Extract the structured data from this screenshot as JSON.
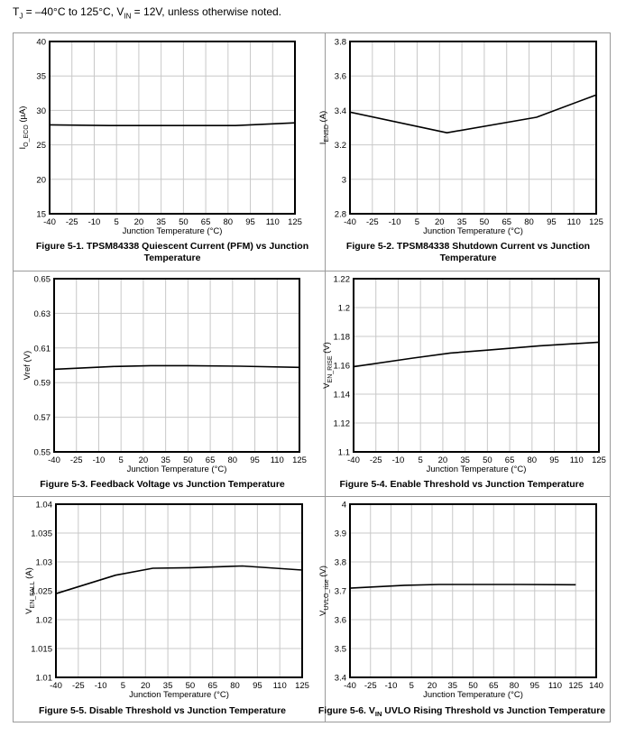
{
  "header": {
    "tj_symbol": "T",
    "tj_sub": "J",
    "range_text": " = –40°C to 125°C, V",
    "vin_sub": "IN",
    "rest_text": " = 12V, unless otherwise noted."
  },
  "chart_data": [
    {
      "type": "line",
      "title": "Figure 5-1. TPSM84338 Quiescent Current (PFM) vs Junction Temperature",
      "title_lines": [
        "Figure 5-1. TPSM84338 Quiescent Current (PFM) vs Junction",
        "Temperature"
      ],
      "xlabel": "Junction Temperature (°C)",
      "ylabel": "I_O_ECO (µA)",
      "ylabel_main": "I",
      "ylabel_sub": "O_ECO",
      "ylabel_tail": " (µA)",
      "xlim": [
        -40,
        125
      ],
      "xticks": [
        -40,
        -25,
        -10,
        5,
        20,
        35,
        50,
        65,
        80,
        95,
        110,
        125
      ],
      "ylim": [
        15,
        40
      ],
      "yticks": [
        15,
        20,
        25,
        30,
        35,
        40
      ],
      "ytick_labels": [
        "15",
        "20",
        "25",
        "30",
        "35",
        "40"
      ],
      "grid": true,
      "series": [
        {
          "x": [
            -40,
            0,
            25,
            85,
            125
          ],
          "y": [
            27.9,
            27.8,
            27.8,
            27.8,
            28.2
          ]
        }
      ]
    },
    {
      "type": "line",
      "title": "Figure 5-2. TPSM84338 Shutdown Current vs Junction Temperature",
      "title_lines": [
        "Figure 5-2. TPSM84338 Shutdown Current vs Junction",
        "Temperature"
      ],
      "xlabel": "Junction Temperature (°C)",
      "ylabel": "I_ENSD (A)",
      "ylabel_main": "I",
      "ylabel_sub": "ENSD",
      "ylabel_tail": " (A)",
      "xlim": [
        -40,
        125
      ],
      "xticks": [
        -40,
        -25,
        -10,
        5,
        20,
        35,
        50,
        65,
        80,
        95,
        110,
        125
      ],
      "ylim": [
        2.8,
        3.8
      ],
      "yticks": [
        2.8,
        3,
        3.2,
        3.4,
        3.6,
        3.8
      ],
      "ytick_labels": [
        "2.8",
        "3",
        "3.2",
        "3.4",
        "3.6",
        "3.8"
      ],
      "grid": true,
      "series": [
        {
          "x": [
            -40,
            25,
            85,
            125
          ],
          "y": [
            3.39,
            3.27,
            3.36,
            3.49
          ]
        }
      ]
    },
    {
      "type": "line",
      "title": "Figure 5-3. Feedback Voltage vs Junction Temperature",
      "title_lines": [
        "Figure 5-3. Feedback Voltage vs Junction Temperature"
      ],
      "xlabel": "Junction Temperature (°C)",
      "ylabel": "Vref (V)",
      "ylabel_main": "Vref (V)",
      "ylabel_sub": "",
      "ylabel_tail": "",
      "xlim": [
        -40,
        125
      ],
      "xticks": [
        -40,
        -25,
        -10,
        5,
        20,
        35,
        50,
        65,
        80,
        95,
        110,
        125
      ],
      "ylim": [
        0.55,
        0.65
      ],
      "yticks": [
        0.55,
        0.57,
        0.59,
        0.61,
        0.63,
        0.65
      ],
      "ytick_labels": [
        "0.55",
        "0.57",
        "0.59",
        "0.61",
        "0.63",
        "0.65"
      ],
      "grid": true,
      "series": [
        {
          "x": [
            -40,
            0,
            25,
            50,
            85,
            125
          ],
          "y": [
            0.5977,
            0.5993,
            0.5998,
            0.5998,
            0.5995,
            0.5988
          ]
        }
      ]
    },
    {
      "type": "line",
      "title": "Figure 5-4. Enable Threshold vs Junction Temperature",
      "title_lines": [
        "Figure 5-4. Enable Threshold vs Junction Temperature"
      ],
      "xlabel": "Junction Temperature (°C)",
      "ylabel": "V_EN_RISE (V)",
      "ylabel_main": "V",
      "ylabel_sub": "EN_RISE",
      "ylabel_tail": " (V)",
      "xlim": [
        -40,
        125
      ],
      "xticks": [
        -40,
        -25,
        -10,
        5,
        20,
        35,
        50,
        65,
        80,
        95,
        110,
        125
      ],
      "ylim": [
        1.1,
        1.22
      ],
      "yticks": [
        1.1,
        1.12,
        1.14,
        1.16,
        1.18,
        1.2,
        1.22
      ],
      "ytick_labels": [
        "1.1",
        "1.12",
        "1.14",
        "1.16",
        "1.18",
        "1.2",
        "1.22"
      ],
      "grid": true,
      "series": [
        {
          "x": [
            -40,
            0,
            25,
            50,
            85,
            125
          ],
          "y": [
            1.159,
            1.165,
            1.1685,
            1.1705,
            1.1735,
            1.176
          ]
        }
      ]
    },
    {
      "type": "line",
      "title": "Figure 5-5. Disable Threshold vs Junction Temperature",
      "title_lines": [
        "Figure 5-5. Disable Threshold vs Junction Temperature"
      ],
      "xlabel": "Junction Temperature (°C)",
      "ylabel": "V_EN_FALL (A)",
      "ylabel_main": "V",
      "ylabel_sub": "EN_FALL",
      "ylabel_tail": " (A)",
      "xlim": [
        -40,
        125
      ],
      "xticks": [
        -40,
        -25,
        -10,
        5,
        20,
        35,
        50,
        65,
        80,
        95,
        110,
        125
      ],
      "ylim": [
        1.01,
        1.04
      ],
      "yticks": [
        1.01,
        1.015,
        1.02,
        1.025,
        1.03,
        1.035,
        1.04
      ],
      "ytick_labels": [
        "1.01",
        "1.015",
        "1.02",
        "1.025",
        "1.03",
        "1.035",
        "1.04"
      ],
      "grid": true,
      "series": [
        {
          "x": [
            -40,
            0,
            25,
            50,
            85,
            125
          ],
          "y": [
            1.0245,
            1.0277,
            1.0289,
            1.029,
            1.0293,
            1.0286
          ]
        }
      ]
    },
    {
      "type": "line",
      "title": "Figure 5-6. VIN UVLO Rising Threshold vs Junction Temperature",
      "title_lines": [
        "Figure 5-6. VIN UVLO Rising Threshold vs Junction Temperature"
      ],
      "title_parts": {
        "prefix": "Figure 5-6. V",
        "sub": "IN",
        "suffix": " UVLO Rising Threshold vs Junction Temperature"
      },
      "xlabel": "Junction Temperature (°C)",
      "ylabel": "V_UVLO_rise (V)",
      "ylabel_main": "V",
      "ylabel_sub": "UVLO_rise",
      "ylabel_tail": " (V)",
      "xlim": [
        -40,
        140
      ],
      "xticks": [
        -40,
        -25,
        -10,
        5,
        20,
        35,
        50,
        65,
        80,
        95,
        110,
        125,
        140
      ],
      "ylim": [
        3.4,
        4
      ],
      "yticks": [
        3.4,
        3.5,
        3.6,
        3.7,
        3.8,
        3.9,
        4
      ],
      "ytick_labels": [
        "3.4",
        "3.5",
        "3.6",
        "3.7",
        "3.8",
        "3.9",
        "4"
      ],
      "grid": true,
      "series": [
        {
          "x": [
            -40,
            0,
            25,
            50,
            85,
            125
          ],
          "y": [
            3.709,
            3.719,
            3.722,
            3.722,
            3.722,
            3.721
          ]
        }
      ]
    }
  ]
}
